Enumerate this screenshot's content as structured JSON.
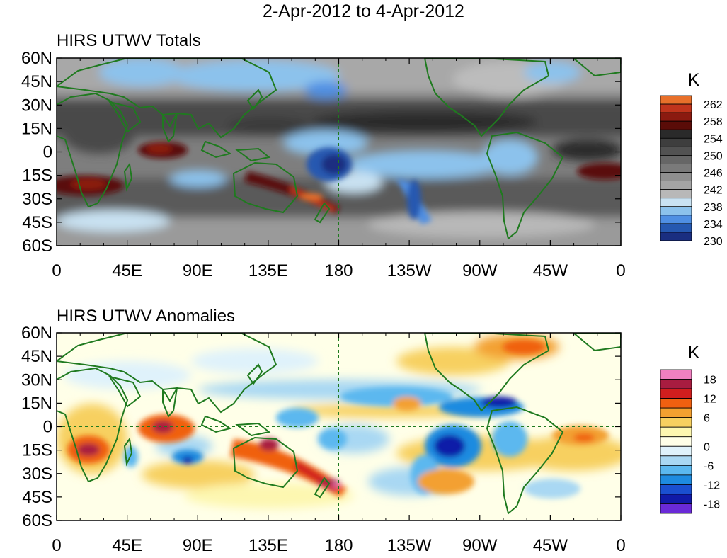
{
  "title": "2-Apr-2012 to 4-Apr-2012",
  "colors": {
    "coast": "#1f7a1f",
    "land_shading": "none"
  },
  "chart_data": [
    {
      "type": "heatmap",
      "title": "HIRS UTWV Totals",
      "x_ticks": [
        "0",
        "45E",
        "90E",
        "135E",
        "180",
        "135W",
        "90W",
        "45W",
        "0"
      ],
      "y_ticks": [
        "60N",
        "45N",
        "30N",
        "15N",
        "0",
        "15S",
        "30S",
        "45S",
        "60S"
      ],
      "xlim": [
        0,
        360
      ],
      "ylim": [
        -60,
        60
      ],
      "colorbar": {
        "unit": "K",
        "labels": [
          "262",
          "258",
          "254",
          "250",
          "246",
          "242",
          "238",
          "234",
          "230"
        ],
        "colors": [
          "#e8702a",
          "#c0341c",
          "#8b1a10",
          "#5a0c08",
          "#2a2a2a",
          "#3e3e3e",
          "#525252",
          "#666666",
          "#7a7a7a",
          "#8f8f8f",
          "#a4a4a4",
          "#b8b8b8",
          "#c9e2f2",
          "#8cc2ec",
          "#4f8fe3",
          "#2558b0",
          "#1a2e80"
        ]
      },
      "features": [
        {
          "name": "Australia-warm-band",
          "lon": 160,
          "lat": -28,
          "value": 260
        },
        {
          "name": "Indian-ocean-warm",
          "lon": 65,
          "lat": -3,
          "value": 258
        },
        {
          "name": "South-Africa-warm",
          "lon": 20,
          "lat": -20,
          "value": 258
        },
        {
          "name": "Pacific-dry-pool",
          "lon": 170,
          "lat": -12,
          "value": 230
        },
        {
          "name": "South-Atlantic-warm",
          "lon": 335,
          "lat": -15,
          "value": 256
        }
      ]
    },
    {
      "type": "heatmap",
      "title": "HIRS UTWV Anomalies",
      "x_ticks": [
        "0",
        "45E",
        "90E",
        "135E",
        "180",
        "135W",
        "90W",
        "45W",
        "0"
      ],
      "y_ticks": [
        "60N",
        "45N",
        "30N",
        "15N",
        "0",
        "15S",
        "30S",
        "45S",
        "60S"
      ],
      "xlim": [
        0,
        360
      ],
      "ylim": [
        -60,
        60
      ],
      "colorbar": {
        "unit": "K",
        "labels": [
          "18",
          "12",
          "6",
          "0",
          "-6",
          "-12",
          "-18"
        ],
        "colors": [
          "#f080c0",
          "#a81c40",
          "#d01e1e",
          "#f06010",
          "#f3a030",
          "#f7d060",
          "#fdf7b0",
          "#ffffe8",
          "#dff2fb",
          "#a9d8f3",
          "#5bb8ef",
          "#1e8be0",
          "#1a4fd0",
          "#101aa8",
          "#6a2ad8"
        ]
      },
      "features": [
        {
          "name": "Australia-positive",
          "lon": 160,
          "lat": -28,
          "value": 14
        },
        {
          "name": "South-Africa-positive",
          "lon": 20,
          "lat": -15,
          "value": 14
        },
        {
          "name": "Indian-ocean-positive",
          "lon": 65,
          "lat": -3,
          "value": 12
        },
        {
          "name": "Caribbean-negative",
          "lon": 282,
          "lat": 15,
          "value": -16
        },
        {
          "name": "East-Pacific-negative",
          "lon": 250,
          "lat": -10,
          "value": -14
        },
        {
          "name": "Madagascar-east-negative",
          "lon": 82,
          "lat": -22,
          "value": -12
        }
      ]
    }
  ]
}
